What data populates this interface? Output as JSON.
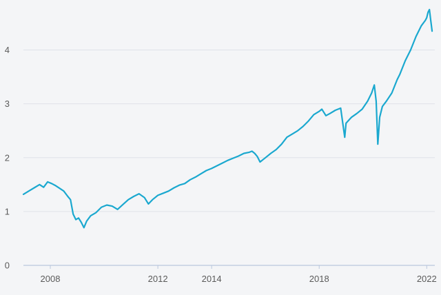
{
  "chart_data": {
    "type": "line",
    "title": "",
    "xlabel": "",
    "ylabel": "",
    "xlim": [
      2007.0,
      2022.3
    ],
    "ylim": [
      0,
      4.8
    ],
    "y_ticks": [
      0,
      1,
      2,
      3,
      4
    ],
    "x_ticks": [
      {
        "value": 2008.0,
        "label": "2008"
      },
      {
        "value": 2012.0,
        "label": "2012"
      },
      {
        "value": 2014.0,
        "label": "2014"
      },
      {
        "value": 2018.0,
        "label": "2018"
      },
      {
        "value": 2022.0,
        "label": "2022"
      }
    ],
    "grid": true,
    "legend": "none",
    "series": [
      {
        "color": "#1aa8cf",
        "x": [
          2007.0,
          2007.2,
          2007.4,
          2007.6,
          2007.75,
          2007.9,
          2008.05,
          2008.2,
          2008.35,
          2008.5,
          2008.65,
          2008.75,
          2008.85,
          2008.95,
          2009.05,
          2009.15,
          2009.25,
          2009.35,
          2009.5,
          2009.7,
          2009.9,
          2010.1,
          2010.3,
          2010.5,
          2010.7,
          2010.9,
          2011.1,
          2011.3,
          2011.5,
          2011.65,
          2011.8,
          2012.0,
          2012.2,
          2012.4,
          2012.6,
          2012.8,
          2013.0,
          2013.2,
          2013.4,
          2013.6,
          2013.8,
          2014.0,
          2014.2,
          2014.4,
          2014.6,
          2014.8,
          2015.0,
          2015.2,
          2015.4,
          2015.5,
          2015.6,
          2015.7,
          2015.8,
          2016.0,
          2016.2,
          2016.4,
          2016.6,
          2016.8,
          2017.0,
          2017.2,
          2017.4,
          2017.6,
          2017.8,
          2018.0,
          2018.1,
          2018.25,
          2018.4,
          2018.6,
          2018.8,
          2018.95,
          2019.0,
          2019.2,
          2019.4,
          2019.6,
          2019.8,
          2019.95,
          2020.05,
          2020.12,
          2020.18,
          2020.25,
          2020.35,
          2020.5,
          2020.7,
          2020.9,
          2021.0,
          2021.2,
          2021.4,
          2021.6,
          2021.8,
          2021.95,
          2022.0,
          2022.05,
          2022.1,
          2022.15,
          2022.2
        ],
        "y": [
          1.32,
          1.38,
          1.44,
          1.5,
          1.45,
          1.55,
          1.52,
          1.48,
          1.43,
          1.38,
          1.28,
          1.22,
          0.95,
          0.85,
          0.88,
          0.8,
          0.7,
          0.82,
          0.92,
          0.98,
          1.08,
          1.12,
          1.1,
          1.04,
          1.13,
          1.22,
          1.28,
          1.33,
          1.26,
          1.14,
          1.22,
          1.3,
          1.34,
          1.38,
          1.44,
          1.49,
          1.52,
          1.59,
          1.64,
          1.7,
          1.76,
          1.8,
          1.85,
          1.9,
          1.95,
          1.99,
          2.03,
          2.08,
          2.1,
          2.12,
          2.08,
          2.02,
          1.92,
          2.0,
          2.08,
          2.15,
          2.25,
          2.38,
          2.44,
          2.5,
          2.58,
          2.68,
          2.8,
          2.86,
          2.9,
          2.78,
          2.82,
          2.88,
          2.92,
          2.38,
          2.64,
          2.75,
          2.82,
          2.9,
          3.05,
          3.2,
          3.35,
          3.05,
          2.25,
          2.75,
          2.95,
          3.05,
          3.2,
          3.45,
          3.55,
          3.8,
          4.0,
          4.25,
          4.45,
          4.55,
          4.6,
          4.7,
          4.75,
          4.55,
          4.35
        ]
      }
    ]
  }
}
